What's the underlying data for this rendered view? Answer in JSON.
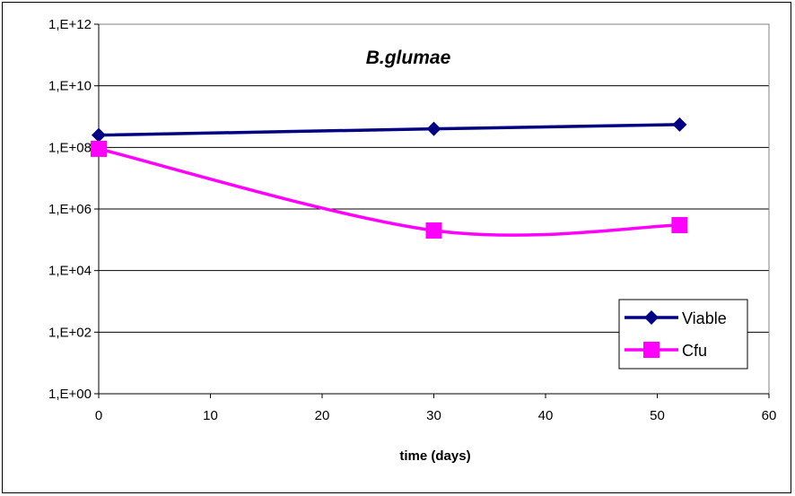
{
  "chart_data": {
    "type": "line",
    "title": "B.glumae",
    "xlabel": "time (days)",
    "ylabel": "",
    "y_scale": "log",
    "xlim": [
      0,
      60
    ],
    "ylim": [
      1,
      1000000000000
    ],
    "x_ticks": [
      0,
      10,
      20,
      30,
      40,
      50,
      60
    ],
    "x_tick_labels": [
      "0",
      "10",
      "20",
      "30",
      "40",
      "50",
      "60"
    ],
    "y_ticks": [
      1,
      100,
      10000,
      1000000,
      100000000,
      10000000000,
      1000000000000
    ],
    "y_tick_labels": [
      "1,E+00",
      "1,E+02",
      "1,E+04",
      "1,E+06",
      "1,E+08",
      "1,E+10",
      "1,E+12"
    ],
    "grid": "horizontal",
    "legend_position": "right",
    "series": [
      {
        "name": "Viable",
        "color": "#000080",
        "marker": "diamond",
        "x": [
          0,
          30,
          52
        ],
        "y": [
          250000000,
          400000000,
          550000000
        ]
      },
      {
        "name": "Cfu",
        "color": "#FF00FF",
        "marker": "square",
        "x": [
          0,
          30,
          52
        ],
        "y": [
          90000000,
          200000,
          300000
        ]
      }
    ]
  }
}
